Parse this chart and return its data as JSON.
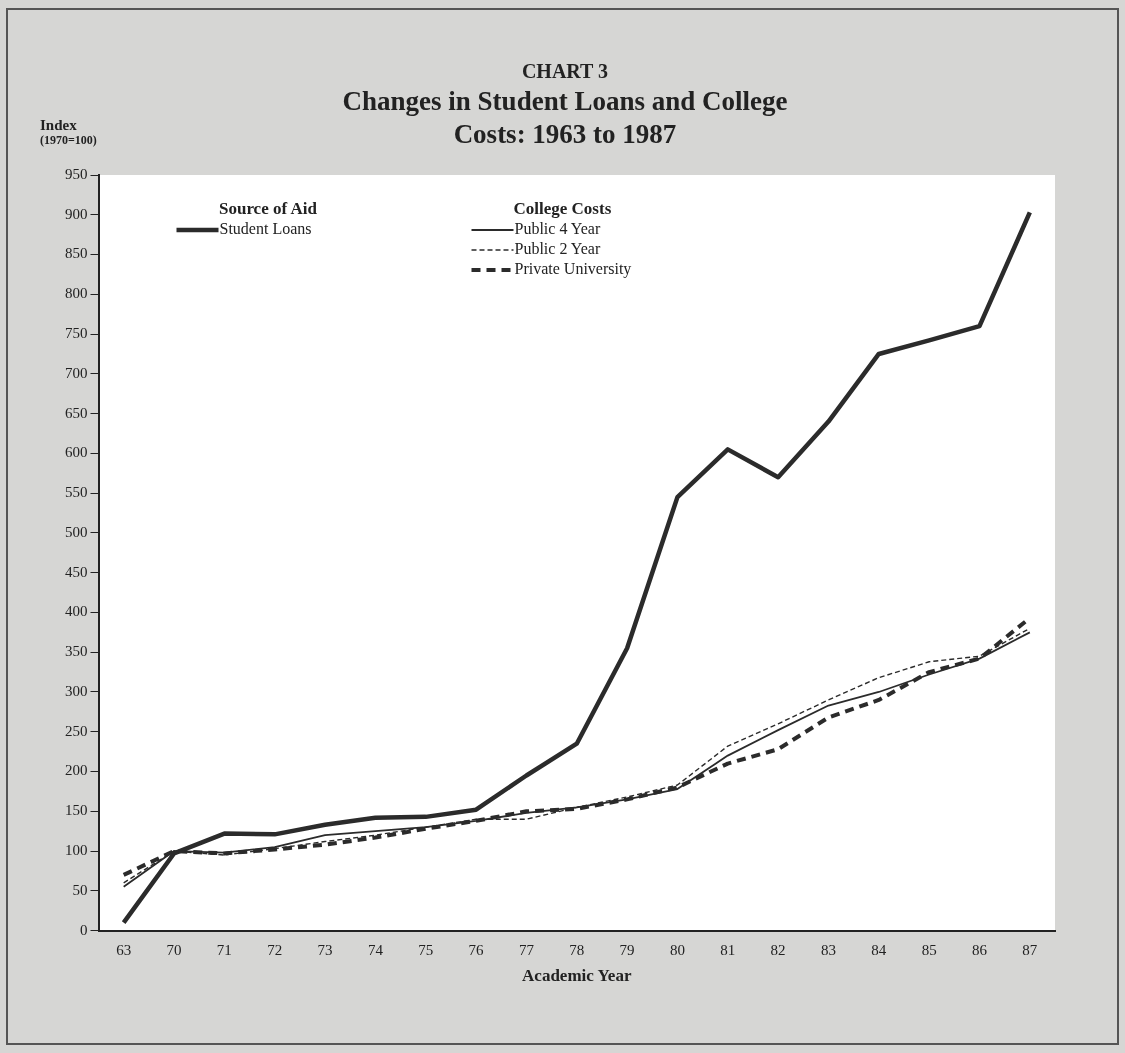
{
  "chart_data": {
    "type": "line",
    "title": "CHART 3",
    "subtitle": "Changes in Student Loans and College Costs: 1963 to 1987",
    "xlabel": "Academic Year",
    "ylabel": "Index (1970=100)",
    "categories": [
      "63",
      "70",
      "71",
      "72",
      "73",
      "74",
      "75",
      "76",
      "77",
      "78",
      "79",
      "80",
      "81",
      "82",
      "83",
      "84",
      "85",
      "86",
      "87"
    ],
    "series": [
      {
        "name": "Student Loans",
        "color": "#2b2b2b",
        "line_style": "solid",
        "values": [
          10,
          97,
          122,
          121,
          133,
          142,
          143,
          152,
          195,
          235,
          355,
          545,
          605,
          570,
          640,
          725,
          742,
          760,
          903
        ]
      },
      {
        "name": "Public 4 Year",
        "color": "#2b2b2b",
        "line_style": "solid",
        "values": [
          55,
          100,
          98,
          105,
          120,
          125,
          130,
          138,
          148,
          155,
          165,
          178,
          220,
          252,
          283,
          300,
          322,
          342,
          375
        ]
      },
      {
        "name": "Public 2 Year",
        "color": "#2b2b2b",
        "line_style": "dashed",
        "values": [
          60,
          100,
          95,
          103,
          112,
          120,
          130,
          140,
          140,
          155,
          168,
          183,
          232,
          260,
          290,
          318,
          338,
          345,
          380
        ]
      },
      {
        "name": "Private University",
        "color": "#2b2b2b",
        "line_style": "dashed",
        "values": [
          70,
          100,
          97,
          102,
          108,
          117,
          128,
          138,
          150,
          153,
          165,
          180,
          210,
          228,
          268,
          290,
          325,
          342,
          393
        ]
      }
    ],
    "annotations": [
      "Source of Aid",
      "College Costs"
    ],
    "ylim": [
      0,
      950
    ],
    "yticks": [
      0,
      50,
      100,
      150,
      200,
      250,
      300,
      350,
      400,
      450,
      500,
      550,
      600,
      650,
      700,
      750,
      800,
      850,
      900,
      950
    ],
    "grid": false,
    "legend": "top",
    "marker": "none"
  }
}
